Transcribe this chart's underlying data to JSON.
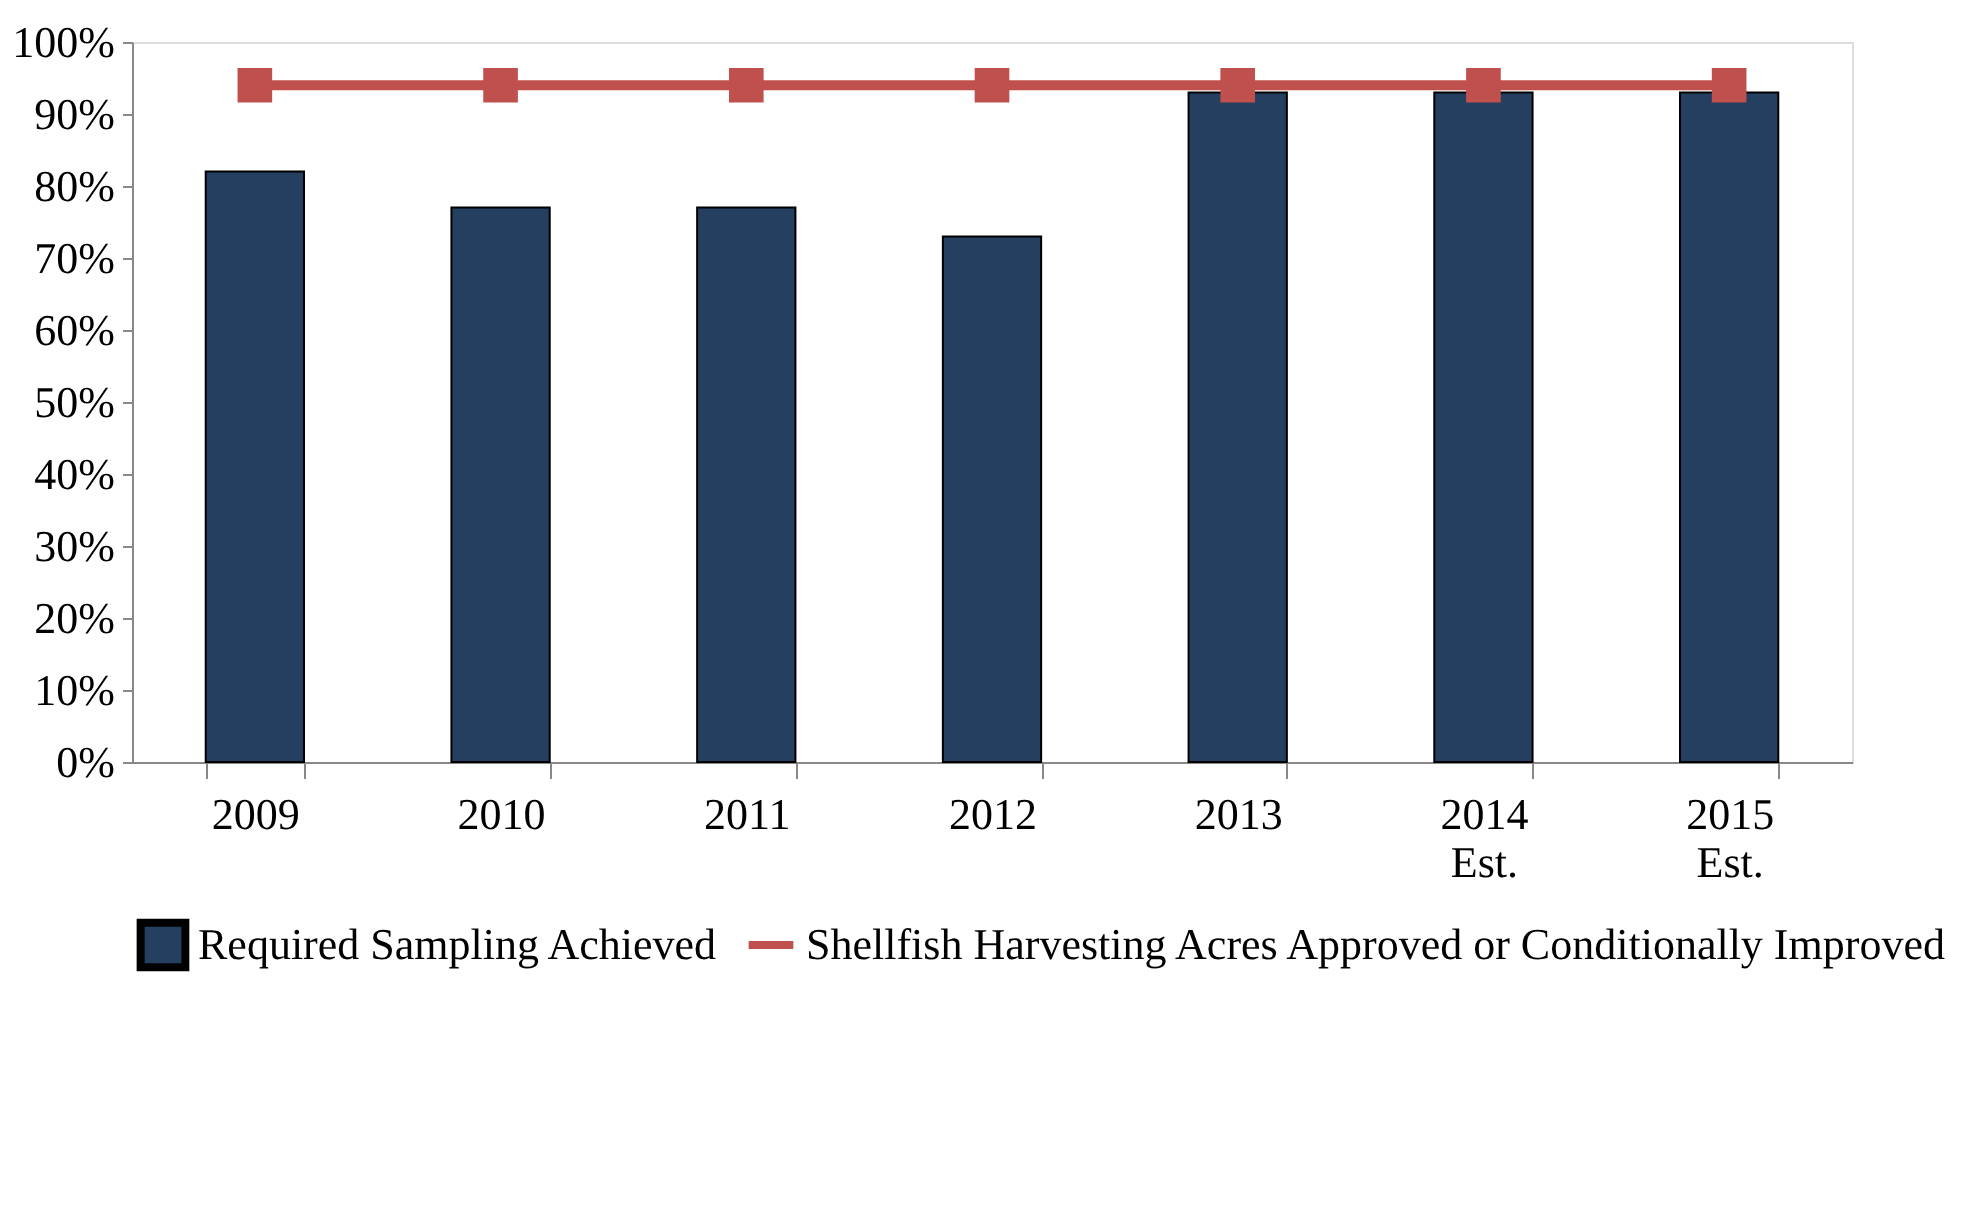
{
  "chart_data": {
    "type": "bar",
    "categories": [
      "2009",
      "2010",
      "2011",
      "2012",
      "2013",
      "2014\nEst.",
      "2015\nEst."
    ],
    "series": [
      {
        "name": "Required Sampling Achieved",
        "color": "#243f60",
        "values": [
          82,
          77,
          77,
          73,
          93,
          93,
          93
        ]
      },
      {
        "name": "Shellfish Harvesting Acres Approved or Conditionally Improved",
        "type": "line",
        "color": "#c0504d",
        "marker": "square",
        "line_style": "solid",
        "values": [
          94,
          94,
          94,
          94,
          94,
          94,
          94
        ]
      }
    ],
    "ylim": [
      0,
      100
    ],
    "yticks": [
      {
        "value": 0,
        "label": "0%"
      },
      {
        "value": 10,
        "label": "10%"
      },
      {
        "value": 20,
        "label": "20%"
      },
      {
        "value": 30,
        "label": "30%"
      },
      {
        "value": 40,
        "label": "40%"
      },
      {
        "value": 50,
        "label": "50%"
      },
      {
        "value": 60,
        "label": "60%"
      },
      {
        "value": 70,
        "label": "70%"
      },
      {
        "value": 80,
        "label": "80%"
      },
      {
        "value": 90,
        "label": "90%"
      },
      {
        "value": 100,
        "label": "100%"
      }
    ],
    "grid": false,
    "legend": "bottom"
  }
}
